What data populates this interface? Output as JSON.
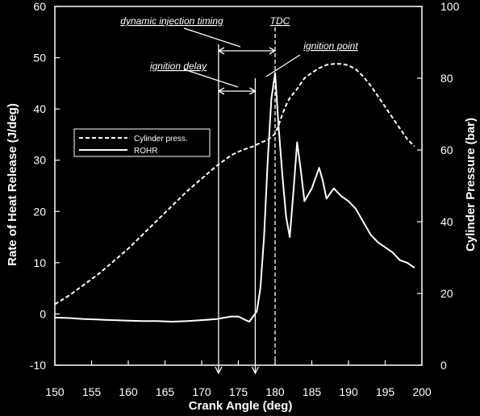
{
  "chart_data": {
    "type": "line",
    "xlabel": "Crank Angle (deg)",
    "ylabel_left": "Rate of Heat Release (J/deg)",
    "ylabel_right": "Cylinder Pressure (bar)",
    "xlim": [
      150,
      200
    ],
    "ylim_left": [
      -10,
      60
    ],
    "ylim_right": [
      0,
      100
    ],
    "x_ticks": [
      "150",
      "155",
      "160",
      "165",
      "170",
      "175",
      "180",
      "185",
      "190",
      "195",
      "200"
    ],
    "y_left_ticks": [
      "-10",
      "0",
      "10",
      "20",
      "30",
      "40",
      "50",
      "60"
    ],
    "y_right_ticks": [
      "0",
      "20",
      "40",
      "60",
      "80",
      "100"
    ],
    "grid": false,
    "legend": {
      "placement": "middle-left",
      "items": [
        {
          "label": "Cylinder press.",
          "style": "dashed"
        },
        {
          "label": "ROHR",
          "style": "solid"
        }
      ]
    },
    "series": [
      {
        "name": "Cylinder press.",
        "axis": "right",
        "style": "dashed",
        "x": [
          150,
          152,
          154,
          156,
          158,
          160,
          162,
          164,
          166,
          168,
          170,
          172,
          174,
          175,
          176,
          177,
          178,
          179,
          180,
          180.5,
          181,
          181.5,
          182,
          183,
          184,
          185,
          186,
          187,
          188,
          189,
          190,
          191,
          192,
          193,
          194,
          195,
          196,
          197,
          198,
          199
        ],
        "y": [
          17,
          19.5,
          22.5,
          25.5,
          29,
          32.5,
          36.5,
          40.5,
          44.5,
          48.5,
          52,
          55.5,
          58.5,
          59.5,
          60.3,
          61,
          62,
          62.8,
          64.5,
          67,
          70,
          72.5,
          74.5,
          77,
          80,
          81.5,
          82.8,
          83.7,
          84,
          84,
          83.6,
          82.5,
          80.5,
          78,
          75,
          72,
          69,
          66,
          63,
          61
        ]
      },
      {
        "name": "ROHR",
        "axis": "left",
        "style": "solid",
        "x": [
          150,
          152,
          154,
          156,
          158,
          160,
          162,
          164,
          166,
          168,
          170,
          172,
          174,
          175,
          176,
          176.5,
          177,
          177.5,
          178,
          178.5,
          179,
          179.5,
          180,
          180.5,
          181,
          181.5,
          182,
          182.5,
          183,
          183.5,
          184,
          185,
          186,
          186.5,
          187,
          187.5,
          188,
          189,
          190,
          191,
          192,
          193,
          194,
          195,
          196,
          197,
          198,
          199
        ],
        "y": [
          -0.7,
          -0.8,
          -1.0,
          -1.1,
          -1.2,
          -1.3,
          -1.4,
          -1.4,
          -1.5,
          -1.4,
          -1.2,
          -1.0,
          -0.5,
          -0.5,
          -1.2,
          -1.5,
          -0.5,
          0.5,
          5,
          15,
          30,
          42,
          47,
          36,
          27,
          19,
          15,
          24,
          33.5,
          28,
          22,
          24.5,
          28.5,
          26,
          22.5,
          23.5,
          24.5,
          23,
          22,
          20.5,
          18,
          15.5,
          14,
          13,
          12,
          10.5,
          10,
          9
        ]
      }
    ],
    "annotations": [
      {
        "text": "dynamic injection timing"
      },
      {
        "text": "TDC"
      },
      {
        "text": "ignition point"
      },
      {
        "text": "ignition delay"
      }
    ]
  }
}
